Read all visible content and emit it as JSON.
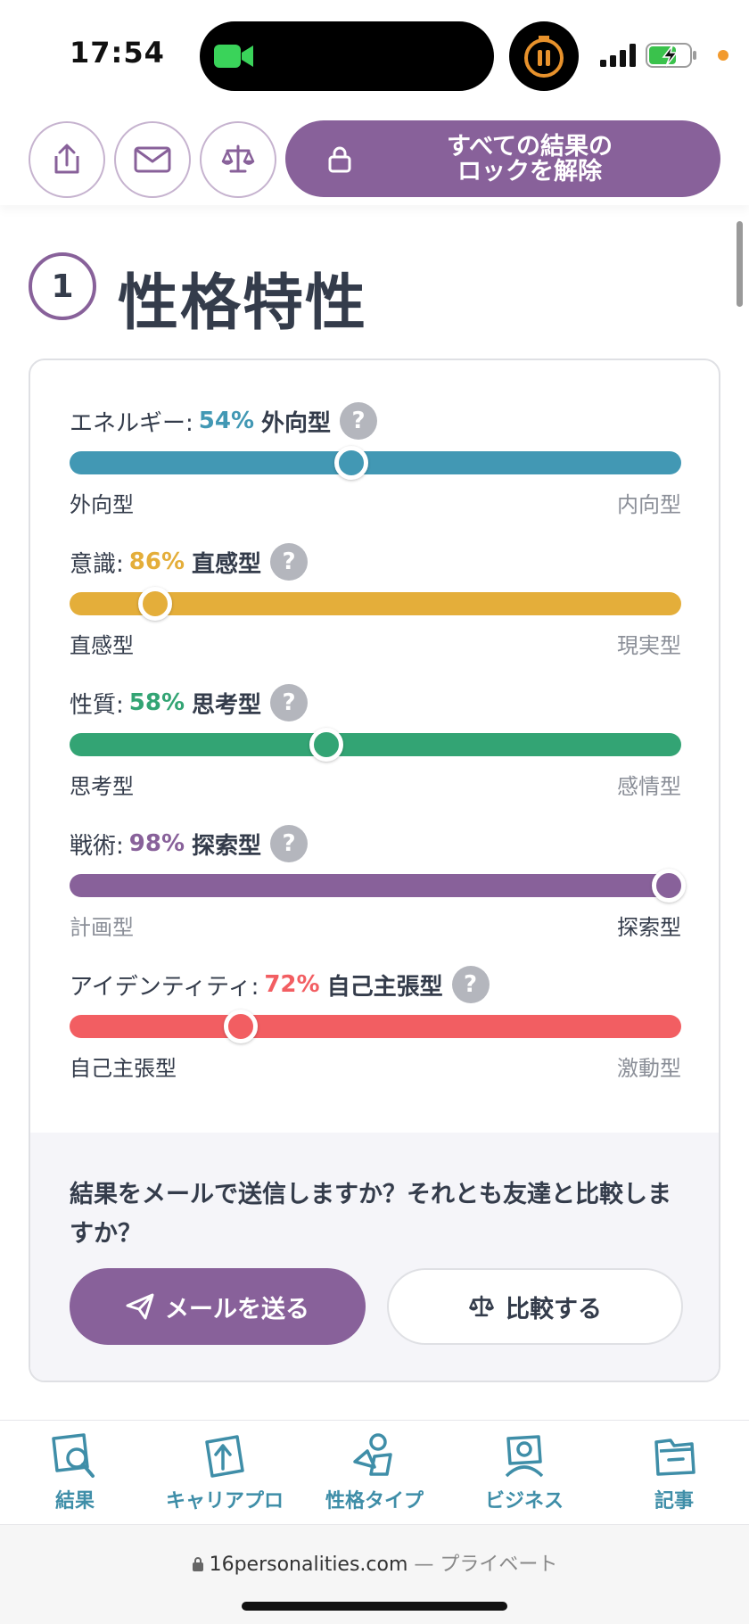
{
  "status_bar": {
    "time": "17:54"
  },
  "toolbar": {
    "unlock_label_line1": "すべての結果の",
    "unlock_label_line2": "ロックを解除"
  },
  "section": {
    "number": "1",
    "title": "性格特性"
  },
  "traits": [
    {
      "name": "エネルギー:",
      "percent": "54%",
      "type": "外向型",
      "left_label": "外向型",
      "right_label": "内向型",
      "value": 0.46,
      "color": "#4298b4",
      "left_bold": true
    },
    {
      "name": "意識:",
      "percent": "86%",
      "type": "直感型",
      "left_label": "直感型",
      "right_label": "現実型",
      "value": 0.14,
      "color": "#e4ae3a",
      "left_bold": true
    },
    {
      "name": "性質:",
      "percent": "58%",
      "type": "思考型",
      "left_label": "思考型",
      "right_label": "感情型",
      "value": 0.42,
      "color": "#33a474",
      "left_bold": true
    },
    {
      "name": "戦術:",
      "percent": "98%",
      "type": "探索型",
      "left_label": "計画型",
      "right_label": "探索型",
      "value": 0.98,
      "color": "#88619a",
      "left_bold": false
    },
    {
      "name": "アイデンティティ:",
      "percent": "72%",
      "type": "自己主張型",
      "left_label": "自己主張型",
      "right_label": "激動型",
      "value": 0.28,
      "color": "#f25e62",
      "left_bold": true
    }
  ],
  "help_icon_text": "?",
  "share": {
    "question": "結果をメールで送信しますか？それとも友達と比較しますか？",
    "mail_label": "メールを送る",
    "compare_label": "比較する"
  },
  "bottom_nav": [
    {
      "label": "結果",
      "icon": "results-icon"
    },
    {
      "label": "キャリアプロ",
      "icon": "career-icon"
    },
    {
      "label": "性格タイプ",
      "icon": "personality-types-icon"
    },
    {
      "label": "ビジネス",
      "icon": "business-icon"
    },
    {
      "label": "記事",
      "icon": "articles-icon"
    }
  ],
  "url_bar": {
    "domain": "16personalities.com",
    "suffix": "— プライベート"
  }
}
